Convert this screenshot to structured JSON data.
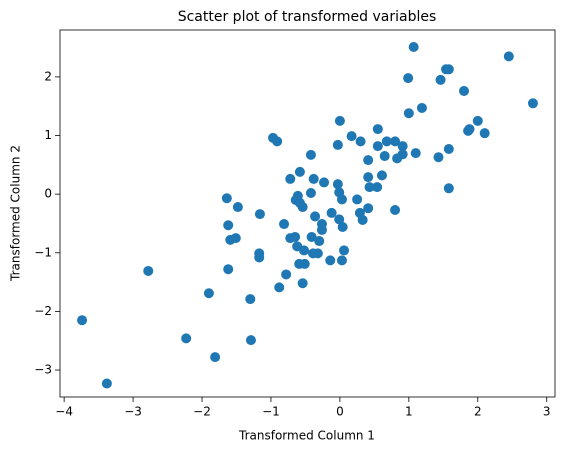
{
  "chart_data": {
    "type": "scatter",
    "title": "Scatter plot of transformed variables",
    "xlabel": "Transformed Column 1",
    "ylabel": "Transformed Column 2",
    "color": "#1f77b4",
    "xlim": [
      -4.06,
      3.12
    ],
    "ylim": [
      -3.46,
      2.8
    ],
    "xticks": [
      {
        "value": -4,
        "label": "−4"
      },
      {
        "value": -3,
        "label": "−3"
      },
      {
        "value": -2,
        "label": "−2"
      },
      {
        "value": -1,
        "label": "−1"
      },
      0,
      1,
      2,
      3
    ],
    "yticks": [
      {
        "value": -3,
        "label": "−3"
      },
      {
        "value": -2,
        "label": "−2"
      },
      {
        "value": -1,
        "label": "−1"
      },
      0,
      1,
      2
    ],
    "x": [
      1.07,
      2.45,
      2.8,
      0.99,
      1.46,
      1.54,
      1.58,
      1.8,
      1.19,
      1.0,
      2.0,
      1.88,
      1.86,
      2.1,
      0.0,
      0.17,
      0.3,
      0.55,
      0.8,
      0.68,
      0.91,
      0.91,
      0.55,
      -0.03,
      1.1,
      0.83,
      0.65,
      0.41,
      1.43,
      1.58,
      1.58,
      -0.97,
      -0.91,
      -0.42,
      -0.58,
      -0.72,
      -0.38,
      -0.23,
      -0.03,
      0.41,
      0.61,
      0.43,
      0.54,
      0.25,
      -0.42,
      -0.01,
      -0.61,
      -0.64,
      -0.54,
      -0.58,
      -1.64,
      -1.48,
      0.03,
      0.41,
      0.8,
      -0.36,
      -0.12,
      -0.01,
      0.29,
      0.33,
      -1.16,
      -1.62,
      -0.81,
      -0.26,
      -0.26,
      0.04,
      -1.59,
      -1.51,
      -0.72,
      -0.65,
      -0.41,
      -0.3,
      -0.62,
      -0.52,
      0.06,
      -0.32,
      -0.39,
      -1.17,
      -1.17,
      -0.14,
      0.03,
      -0.59,
      -0.51,
      -1.62,
      -2.78,
      -0.78,
      -0.54,
      -0.88,
      -1.9,
      -1.3,
      -3.74,
      -2.23,
      -1.29,
      -1.81,
      -3.38
    ],
    "values": [
      2.51,
      2.35,
      1.55,
      1.98,
      1.95,
      2.13,
      2.13,
      1.76,
      1.47,
      1.38,
      1.25,
      1.11,
      1.08,
      1.04,
      1.25,
      0.99,
      0.9,
      1.11,
      0.9,
      0.9,
      0.82,
      0.68,
      0.82,
      0.84,
      0.7,
      0.61,
      0.65,
      0.58,
      0.63,
      0.77,
      0.1,
      0.96,
      0.9,
      0.67,
      0.38,
      0.26,
      0.26,
      0.2,
      0.17,
      0.29,
      0.32,
      0.12,
      0.12,
      -0.09,
      0.02,
      0.03,
      -0.03,
      -0.1,
      -0.22,
      -0.15,
      -0.07,
      -0.22,
      -0.09,
      -0.24,
      -0.27,
      -0.38,
      -0.32,
      -0.43,
      -0.32,
      -0.44,
      -0.34,
      -0.53,
      -0.51,
      -0.51,
      -0.61,
      -0.56,
      -0.78,
      -0.75,
      -0.75,
      -0.73,
      -0.73,
      -0.8,
      -0.89,
      -0.96,
      -0.96,
      -1.01,
      -1.01,
      -1.01,
      -1.08,
      -1.13,
      -1.13,
      -1.19,
      -1.19,
      -1.28,
      -1.31,
      -1.37,
      -1.52,
      -1.59,
      -1.69,
      -1.79,
      -2.15,
      -2.46,
      -2.49,
      -2.78,
      -3.23
    ]
  }
}
